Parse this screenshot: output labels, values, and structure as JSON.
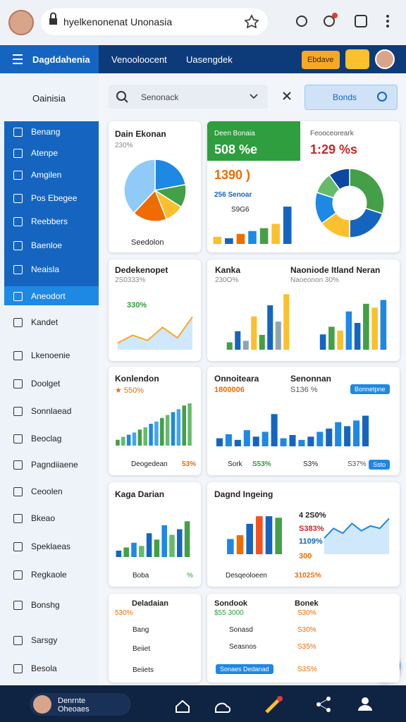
{
  "browser": {
    "url": "hyelkenonenat Unonasia"
  },
  "header": {
    "brand": "Dagddahenia",
    "tabs": [
      "Venooloocent",
      "Uasengdek"
    ],
    "button": "Ebdave"
  },
  "sidebar": {
    "title": "Oainisia",
    "items": [
      "Benang",
      "Atenpe",
      "Amgilen",
      "Pos Ebegee",
      "Reebbers",
      "Baenloe",
      "Neaisla",
      "Aneodort",
      "Kandet",
      "Lkenoenie",
      "Doolget",
      "Sonnlaead",
      "Beoclag",
      "Pagndiiaene",
      "Ceoolen",
      "Bkeao",
      "Speklaeas",
      "Regkaole",
      "Bonshg",
      "Sarsgy",
      "Besola"
    ]
  },
  "toolbar": {
    "search": "Senonack",
    "button": "Bonds"
  },
  "cards": [
    {
      "texts": [
        "Dain Ekonan",
        "230%",
        "Seedolon"
      ]
    },
    {
      "texts": [
        "Deen Bonaia",
        "508 %e",
        "Feooceoreark",
        "1:29 %s",
        "1390 )",
        "256 Senoar",
        "S9G6"
      ]
    },
    {
      "texts": [
        "Dedekenopet",
        "2S0333%",
        "330%"
      ]
    },
    {
      "texts": [
        "Kanka",
        "230O%",
        "Naoniode Itland Neran",
        "Naoeonon 30%"
      ]
    },
    {
      "texts": [
        "Konlendon",
        "★ 550%",
        "Deogedean",
        "53%"
      ]
    },
    {
      "texts": [
        "Onnoiteara",
        "1800006",
        "Senonnan",
        "S136 %",
        "Bonnetpne",
        "Sork",
        "S53%",
        "S3%",
        "S37%",
        "Ssto"
      ]
    },
    {
      "texts": [
        "Kaga Darian",
        "Boba",
        "%"
      ]
    },
    {
      "texts": [
        "Dagnd Ingeing",
        "4 2S0%",
        "S383%",
        "1109%",
        "300",
        "Desqeoloeen",
        "3102S%"
      ]
    },
    {
      "texts": [
        "Deladaian",
        "530%",
        "Bang",
        "Beiiet",
        "Beiiets"
      ]
    },
    {
      "texts": [
        "Sondook",
        "Bonek",
        "$55 3000",
        "S30%",
        "Sonasd",
        "S30%",
        "Seasnos",
        "S35%",
        "Sonaes Dedanad",
        "S3S%"
      ]
    }
  ],
  "charts": [
    {
      "type": "pie",
      "values": [
        22,
        12,
        10,
        18,
        38
      ],
      "colors": [
        "#1e88e5",
        "#43a047",
        "#fbc02d",
        "#ef6c00",
        "#90caf9"
      ]
    },
    {
      "type": "bar",
      "values": [
        10,
        8,
        14,
        18,
        22,
        28,
        52
      ],
      "ylim": [
        0,
        55
      ],
      "colors": [
        "#fbc02d",
        "#1565c0",
        "#ef6c00",
        "#1e88e5",
        "#43a047"
      ]
    },
    {
      "type": "donut",
      "values": [
        30,
        20,
        15,
        15,
        10,
        10
      ],
      "colors": [
        "#43a047",
        "#1565c0",
        "#fbc02d",
        "#1e88e5",
        "#66bb6a",
        "#0d47a1"
      ]
    },
    {
      "type": "line",
      "values": [
        2,
        5,
        3,
        8,
        4,
        12
      ],
      "ylim": [
        0,
        14
      ],
      "colors": [
        "#f9a825"
      ]
    },
    {
      "type": "bar",
      "values": [
        10,
        25,
        12,
        45,
        20,
        60,
        38,
        75
      ],
      "ylim": [
        0,
        80
      ],
      "colors": [
        "#43a047",
        "#1565c0",
        "#90a4ae",
        "#fbc02d"
      ]
    },
    {
      "type": "bar",
      "values": [
        20,
        30,
        25,
        50,
        35,
        60,
        55,
        65
      ],
      "ylim": [
        0,
        70
      ],
      "colors": [
        "#1565c0",
        "#43a047",
        "#fbc02d",
        "#1e88e5"
      ]
    },
    {
      "type": "bar",
      "values": [
        8,
        12,
        15,
        18,
        22,
        25,
        30,
        33,
        38,
        42,
        46,
        50,
        55,
        58
      ],
      "ylim": [
        0,
        60
      ],
      "colors": [
        "#43a047",
        "#66bb6a",
        "#1e88e5",
        "#42a5f5"
      ]
    },
    {
      "type": "bar",
      "values": [
        10,
        15,
        8,
        20,
        12,
        18,
        40,
        10,
        14,
        8,
        12,
        18,
        22,
        30,
        25,
        32,
        38
      ],
      "ylim": [
        0,
        42
      ],
      "colors": [
        "#1565c0",
        "#1e88e5"
      ]
    },
    {
      "type": "bar",
      "values": [
        8,
        12,
        18,
        14,
        30,
        22,
        40,
        28,
        35,
        45
      ],
      "ylim": [
        0,
        48
      ],
      "colors": [
        "#1565c0",
        "#43a047",
        "#1e88e5",
        "#66bb6a"
      ]
    },
    {
      "type": "bar",
      "values": [
        20,
        25,
        40,
        50,
        50,
        48
      ],
      "ylim": [
        0,
        52
      ],
      "colors": [
        "#1e88e5",
        "#ef6c00",
        "#1565c0",
        "#f4511e",
        "#1565c0",
        "#43a047"
      ]
    },
    {
      "type": "line",
      "values": [
        30,
        50,
        40,
        60,
        45,
        55,
        50,
        70
      ],
      "ylim": [
        0,
        75
      ],
      "colors": [
        "#1e88e5"
      ]
    }
  ],
  "footer": {
    "user": "Denrnte Oheoaes"
  }
}
